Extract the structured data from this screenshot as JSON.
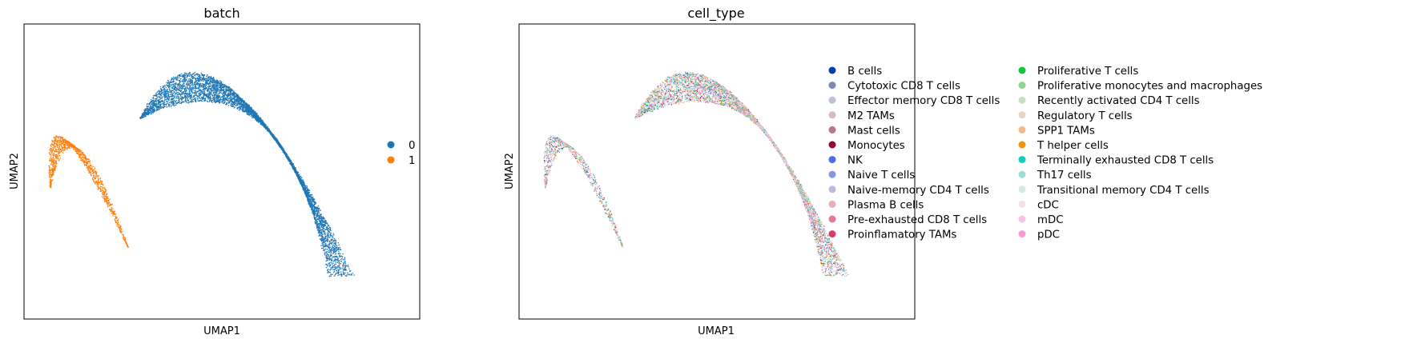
{
  "chart_data": [
    {
      "type": "scatter",
      "title": "batch",
      "xlabel": "UMAP1",
      "ylabel": "UMAP2",
      "grid": false,
      "ticks": false,
      "legend_placement": "right-outside",
      "series": [
        {
          "name": "0",
          "color": "#1f77b4",
          "region": "large crescent cluster (right)"
        },
        {
          "name": "1",
          "color": "#ff7f0e",
          "region": "small curved cluster (left)"
        }
      ]
    },
    {
      "type": "scatter",
      "title": "cell_type",
      "xlabel": "UMAP1",
      "ylabel": "UMAP2",
      "grid": false,
      "ticks": false,
      "legend_placement": "right-outside",
      "series": [
        {
          "name": "B cells",
          "color": "#023fa5"
        },
        {
          "name": "Cytotoxic CD8 T cells",
          "color": "#7d87b9"
        },
        {
          "name": "Effector memory CD8 T cells",
          "color": "#bec1d4"
        },
        {
          "name": "M2 TAMs",
          "color": "#d6bcc0"
        },
        {
          "name": "Mast cells",
          "color": "#bb7784"
        },
        {
          "name": "Monocytes",
          "color": "#8e063b"
        },
        {
          "name": "NK",
          "color": "#4a6fe3"
        },
        {
          "name": "Naive T cells",
          "color": "#8595e1"
        },
        {
          "name": "Naive-memory CD4 T cells",
          "color": "#b5bbe3"
        },
        {
          "name": "Plasma B cells",
          "color": "#e6afb9"
        },
        {
          "name": "Pre-exhausted CD8 T cells",
          "color": "#e07b91"
        },
        {
          "name": "Proinflamatory TAMs",
          "color": "#d33f6a"
        },
        {
          "name": "Proliferative T cells",
          "color": "#11c638"
        },
        {
          "name": "Proliferative monocytes and macrophages",
          "color": "#8dd593"
        },
        {
          "name": "Recently activated CD4 T cells",
          "color": "#c6dec7"
        },
        {
          "name": "Regulatory T cells",
          "color": "#ead3c6"
        },
        {
          "name": "SPP1 TAMs",
          "color": "#f0b98d"
        },
        {
          "name": "T helper cells",
          "color": "#ef9708"
        },
        {
          "name": "Terminally exhausted CD8 T cells",
          "color": "#0fcfc0"
        },
        {
          "name": "Th17 cells",
          "color": "#9cded6"
        },
        {
          "name": "Transitional memory CD4 T cells",
          "color": "#d5eae7"
        },
        {
          "name": "cDC",
          "color": "#f3e1eb"
        },
        {
          "name": "mDC",
          "color": "#f6c4e1"
        },
        {
          "name": "pDC",
          "color": "#f79cd4"
        }
      ]
    }
  ]
}
